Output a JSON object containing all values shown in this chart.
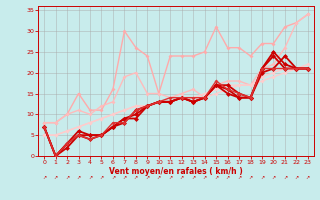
{
  "title": "",
  "xlabel": "Vent moyen/en rafales ( km/h )",
  "ylabel": "",
  "xlim": [
    -0.5,
    23.5
  ],
  "ylim": [
    0,
    36
  ],
  "xticks": [
    0,
    1,
    2,
    3,
    4,
    5,
    6,
    7,
    8,
    9,
    10,
    11,
    12,
    13,
    14,
    15,
    16,
    17,
    18,
    19,
    20,
    21,
    22,
    23
  ],
  "yticks": [
    0,
    5,
    10,
    15,
    20,
    25,
    30,
    35
  ],
  "bg_color": "#c8ecec",
  "grid_color": "#aaaaaa",
  "series": [
    {
      "x": [
        0,
        1,
        2,
        3,
        4,
        5,
        6,
        7,
        8,
        9,
        10,
        11,
        12,
        13,
        14,
        15,
        16,
        17,
        18,
        19,
        20,
        21,
        22,
        23
      ],
      "y": [
        8,
        8,
        10,
        15,
        11,
        11,
        16,
        30,
        26,
        24,
        15,
        24,
        24,
        24,
        25,
        31,
        26,
        26,
        24,
        27,
        27,
        31,
        32,
        34
      ],
      "color": "#ffaaaa",
      "lw": 1.0,
      "marker": "D",
      "ms": 2.0
    },
    {
      "x": [
        0,
        1,
        2,
        3,
        4,
        5,
        6,
        7,
        8,
        9,
        10,
        11,
        12,
        13,
        14,
        15,
        16,
        17,
        18,
        19,
        20,
        21,
        22,
        23
      ],
      "y": [
        8,
        8,
        10,
        11,
        10,
        12,
        13,
        19,
        20,
        15,
        15,
        14,
        15,
        16,
        14,
        17,
        18,
        18,
        17,
        21,
        22,
        26,
        32,
        34
      ],
      "color": "#ffbbbb",
      "lw": 1.0,
      "marker": "D",
      "ms": 2.0
    },
    {
      "x": [
        0,
        1,
        2,
        3,
        4,
        5,
        6,
        7,
        8,
        9,
        10,
        11,
        12,
        13,
        14,
        15,
        16,
        17,
        18,
        19,
        20,
        21,
        22,
        23
      ],
      "y": [
        5,
        5,
        6,
        7,
        8,
        9,
        10,
        11,
        12,
        12,
        13,
        13,
        14,
        14,
        14,
        15,
        16,
        17,
        17,
        18,
        19,
        20,
        21,
        21
      ],
      "color": "#ffcccc",
      "lw": 1.0,
      "marker": "D",
      "ms": 2.0
    },
    {
      "x": [
        0,
        1,
        2,
        3,
        4,
        5,
        6,
        7,
        8,
        9,
        10,
        11,
        12,
        13,
        14,
        15,
        16,
        17,
        18,
        19,
        20,
        21,
        22,
        23
      ],
      "y": [
        5,
        5,
        6,
        7,
        8,
        9,
        10,
        11,
        12,
        12,
        13,
        13,
        14,
        14,
        15,
        16,
        17,
        17,
        17,
        19,
        20,
        21,
        21,
        22
      ],
      "color": "#ffcccc",
      "lw": 1.0,
      "marker": "D",
      "ms": 2.0
    },
    {
      "x": [
        0,
        1,
        2,
        3,
        4,
        5,
        6,
        7,
        8,
        9,
        10,
        11,
        12,
        13,
        14,
        15,
        16,
        17,
        18,
        19,
        20,
        21,
        22,
        23
      ],
      "y": [
        7,
        0,
        2,
        5,
        5,
        5,
        7,
        9,
        9,
        12,
        13,
        13,
        14,
        13,
        14,
        17,
        15,
        14,
        14,
        20,
        21,
        24,
        21,
        21
      ],
      "color": "#cc0000",
      "lw": 1.3,
      "marker": "D",
      "ms": 2.5
    },
    {
      "x": [
        0,
        1,
        2,
        3,
        4,
        5,
        6,
        7,
        8,
        9,
        10,
        11,
        12,
        13,
        14,
        15,
        16,
        17,
        18,
        19,
        20,
        21,
        22,
        23
      ],
      "y": [
        7,
        0,
        3,
        6,
        5,
        5,
        7,
        9,
        10,
        12,
        13,
        13,
        14,
        13,
        14,
        17,
        16,
        14,
        14,
        21,
        25,
        22,
        21,
        21
      ],
      "color": "#cc0000",
      "lw": 1.3,
      "marker": "D",
      "ms": 2.5
    },
    {
      "x": [
        0,
        1,
        2,
        3,
        4,
        5,
        6,
        7,
        8,
        9,
        10,
        11,
        12,
        13,
        14,
        15,
        16,
        17,
        18,
        19,
        20,
        21,
        22,
        23
      ],
      "y": [
        7,
        0,
        3,
        5,
        4,
        5,
        7,
        8,
        11,
        12,
        13,
        13,
        14,
        13,
        14,
        17,
        17,
        15,
        14,
        21,
        24,
        21,
        21,
        21
      ],
      "color": "#cc0000",
      "lw": 1.3,
      "marker": "D",
      "ms": 2.5
    },
    {
      "x": [
        0,
        1,
        2,
        3,
        4,
        5,
        6,
        7,
        8,
        9,
        10,
        11,
        12,
        13,
        14,
        15,
        16,
        17,
        18,
        19,
        20,
        21,
        22,
        23
      ],
      "y": [
        7,
        0,
        3,
        5,
        4,
        5,
        8,
        8,
        11,
        12,
        13,
        14,
        14,
        14,
        14,
        18,
        16,
        15,
        14,
        21,
        21,
        21,
        21,
        21
      ],
      "color": "#dd3333",
      "lw": 1.0,
      "marker": "D",
      "ms": 2.0
    }
  ],
  "wind_symbols": [
    0,
    1,
    2,
    3,
    4,
    5,
    6,
    7,
    8,
    9,
    10,
    11,
    12,
    13,
    14,
    15,
    16,
    17,
    18,
    19,
    20,
    21,
    22,
    23
  ]
}
